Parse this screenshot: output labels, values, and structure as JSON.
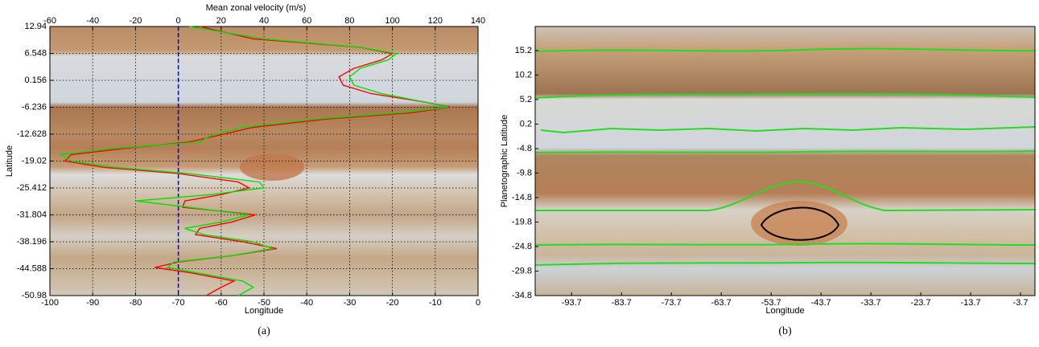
{
  "chart_data": [
    {
      "type": "line",
      "x2label": "Mean zonal velocity (m/s)",
      "xlabel": "Longitude",
      "ylabel": "Latitude",
      "caption": "(a)",
      "xlim": [
        -100,
        0
      ],
      "xticks": [
        -100,
        -90,
        -80,
        -70,
        -60,
        -50,
        -40,
        -30,
        -20,
        -10,
        0
      ],
      "x2lim": [
        -60,
        140
      ],
      "x2ticks": [
        -60,
        -40,
        -20,
        0,
        20,
        40,
        60,
        80,
        100,
        120,
        140
      ],
      "ylim": [
        -50.98,
        12.94
      ],
      "yticks": [
        12.94,
        6.548,
        0.156,
        -6.236,
        -12.628,
        -19.02,
        -25.412,
        -31.804,
        -38.196,
        -44.588,
        -50.98
      ],
      "grid": true,
      "y": [
        12.94,
        10,
        8,
        6.5,
        5,
        3,
        1,
        -1,
        -3,
        -5,
        -6.2,
        -7.5,
        -9,
        -11,
        -13,
        -14.5,
        -16,
        -17.5,
        -19,
        -20.5,
        -22,
        -24,
        -25.4,
        -27,
        -28.5,
        -30,
        -31.8,
        -33.5,
        -35,
        -36.5,
        -38.2,
        -39.8,
        -41.5,
        -43,
        -44.3,
        -45.5,
        -47.5,
        -49,
        -50.98
      ],
      "series": [
        {
          "color": "#ff0000",
          "axis": "x2",
          "values": [
            10,
            35,
            85,
            100,
            95,
            82,
            75,
            77,
            90,
            115,
            127,
            110,
            70,
            35,
            18,
            5,
            -25,
            -50,
            -53,
            -35,
            0,
            28,
            33,
            20,
            3,
            2,
            36,
            25,
            10,
            8,
            30,
            46,
            25,
            0,
            -11,
            5,
            26,
            20,
            13
          ]
        },
        {
          "color": "#00e000",
          "axis": "x2",
          "values": [
            5,
            40,
            85,
            102,
            98,
            85,
            80,
            82,
            95,
            115,
            126,
            105,
            65,
            30,
            15,
            10,
            -30,
            -55,
            -50,
            -30,
            5,
            38,
            40,
            15,
            -20,
            5,
            33,
            20,
            3,
            12,
            35,
            44,
            25,
            -2,
            -5,
            8,
            30,
            35,
            28
          ]
        }
      ],
      "reference_lines": [
        {
          "value": 0,
          "axis": "x2",
          "color": "#0000ff"
        }
      ]
    },
    {
      "type": "image",
      "xlabel": "Longitude",
      "ylabel": "Planetographic Latitude",
      "caption": "(b)",
      "xlim": [
        -101,
        -0.8
      ],
      "xticks": [
        -93.7,
        -83.7,
        -73.7,
        -63.7,
        -53.7,
        -43.7,
        -33.7,
        -23.7,
        -13.7,
        -3.7
      ],
      "ylim": [
        -34.8,
        20.1
      ],
      "yticks": [
        15.2,
        10.2,
        5.2,
        0.2,
        -4.8,
        -9.8,
        -14.8,
        -19.8,
        -24.8,
        -29.8,
        -34.8
      ],
      "grid": false
    }
  ]
}
